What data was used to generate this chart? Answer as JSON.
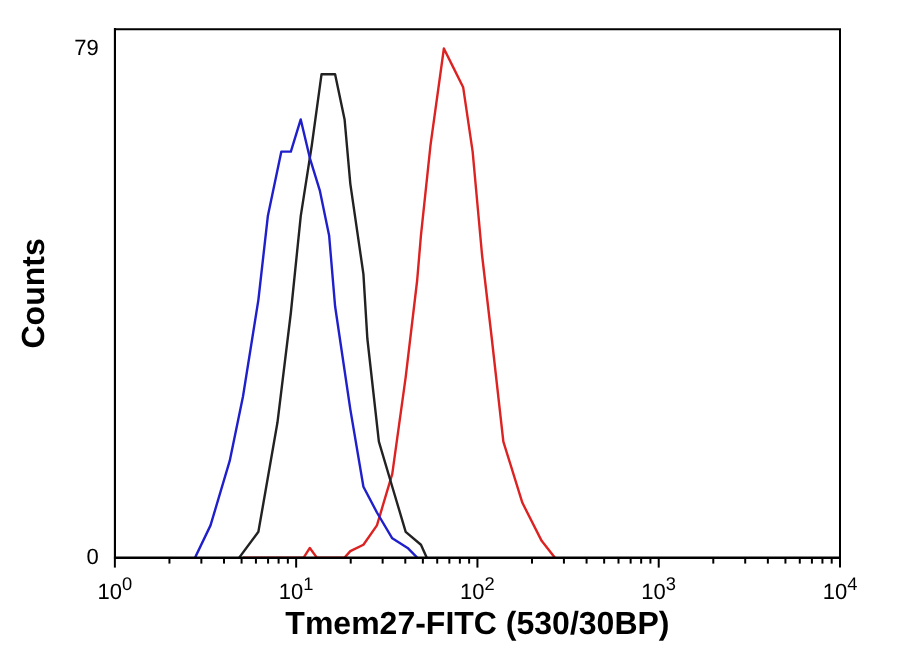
{
  "chart_data": {
    "type": "line",
    "xlabel": "Tmem27-FITC (530/30BP)",
    "ylabel": "Counts",
    "log": "x",
    "xlim": [
      1,
      10000
    ],
    "ylim": [
      0,
      82
    ],
    "xticks": [
      {
        "value": 1,
        "label": "10$^{0}$"
      },
      {
        "value": 2,
        "label": null
      },
      {
        "value": 3,
        "label": null
      },
      {
        "value": 4,
        "label": null
      },
      {
        "value": 5,
        "label": null
      },
      {
        "value": 6,
        "label": null
      },
      {
        "value": 7,
        "label": null
      },
      {
        "value": 8,
        "label": null
      },
      {
        "value": 9,
        "label": null
      },
      {
        "value": 10,
        "label": "10$^{1}$"
      },
      {
        "value": 20,
        "label": null
      },
      {
        "value": 30,
        "label": null
      },
      {
        "value": 40,
        "label": null
      },
      {
        "value": 50,
        "label": null
      },
      {
        "value": 60,
        "label": null
      },
      {
        "value": 70,
        "label": null
      },
      {
        "value": 80,
        "label": null
      },
      {
        "value": 90,
        "label": null
      },
      {
        "value": 100,
        "label": "10$^{2}$"
      },
      {
        "value": 200,
        "label": null
      },
      {
        "value": 300,
        "label": null
      },
      {
        "value": 400,
        "label": null
      },
      {
        "value": 500,
        "label": null
      },
      {
        "value": 600,
        "label": null
      },
      {
        "value": 700,
        "label": null
      },
      {
        "value": 800,
        "label": null
      },
      {
        "value": 900,
        "label": null
      },
      {
        "value": 1000,
        "label": "10$^{3}$"
      },
      {
        "value": 2000,
        "label": null
      },
      {
        "value": 3000,
        "label": null
      },
      {
        "value": 4000,
        "label": null
      },
      {
        "value": 5000,
        "label": null
      },
      {
        "value": 6000,
        "label": null
      },
      {
        "value": 7000,
        "label": null
      },
      {
        "value": 8000,
        "label": null
      },
      {
        "value": 9000,
        "label": null
      },
      {
        "value": 10000,
        "label": "10$^{4}$"
      }
    ],
    "yticks": [
      0,
      79
    ],
    "grid": false,
    "legend": false,
    "marker": "none",
    "line_style": "solid",
    "series": [
      {
        "color": "#1f1fcc",
        "x": [
          2.77,
          3.37,
          4.3,
          5.09,
          6.19,
          6.98,
          8.28,
          9.35,
          10.6,
          11.9,
          13.5,
          15.2,
          16.4,
          19.9,
          23.5,
          27.9,
          33.9,
          41.2,
          46.5
        ],
        "values": [
          0,
          5,
          15,
          25,
          40,
          53,
          63,
          63,
          68,
          62,
          57,
          50,
          39,
          23,
          11,
          7,
          3,
          1.5,
          0
        ]
      },
      {
        "color": "#222222",
        "x": [
          4.85,
          6.19,
          7.89,
          9.35,
          10.6,
          12.2,
          13.8,
          16.4,
          18.5,
          19.9,
          23.5,
          24.7,
          28.6,
          33.9,
          40.2,
          48.8,
          52.5
        ],
        "values": [
          0,
          4,
          21,
          38,
          53,
          64,
          75,
          75,
          68,
          58,
          44,
          34,
          18,
          11,
          4,
          2,
          0
        ]
      },
      {
        "color": "#dd2222",
        "x": [
          5.09,
          11,
          11.9,
          13,
          18.5,
          19.9,
          23.5,
          27.9,
          33.9,
          40.2,
          46.5,
          48.8,
          55.1,
          65.3,
          73.8,
          83.4,
          94.1,
          106,
          120,
          139,
          177,
          226,
          267
        ],
        "values": [
          0,
          0,
          1.5,
          0,
          0,
          1,
          2,
          5,
          13,
          28,
          43,
          50,
          64,
          79,
          76,
          73,
          63,
          47,
          34,
          18,
          8.5,
          2.6,
          0
        ]
      }
    ]
  }
}
